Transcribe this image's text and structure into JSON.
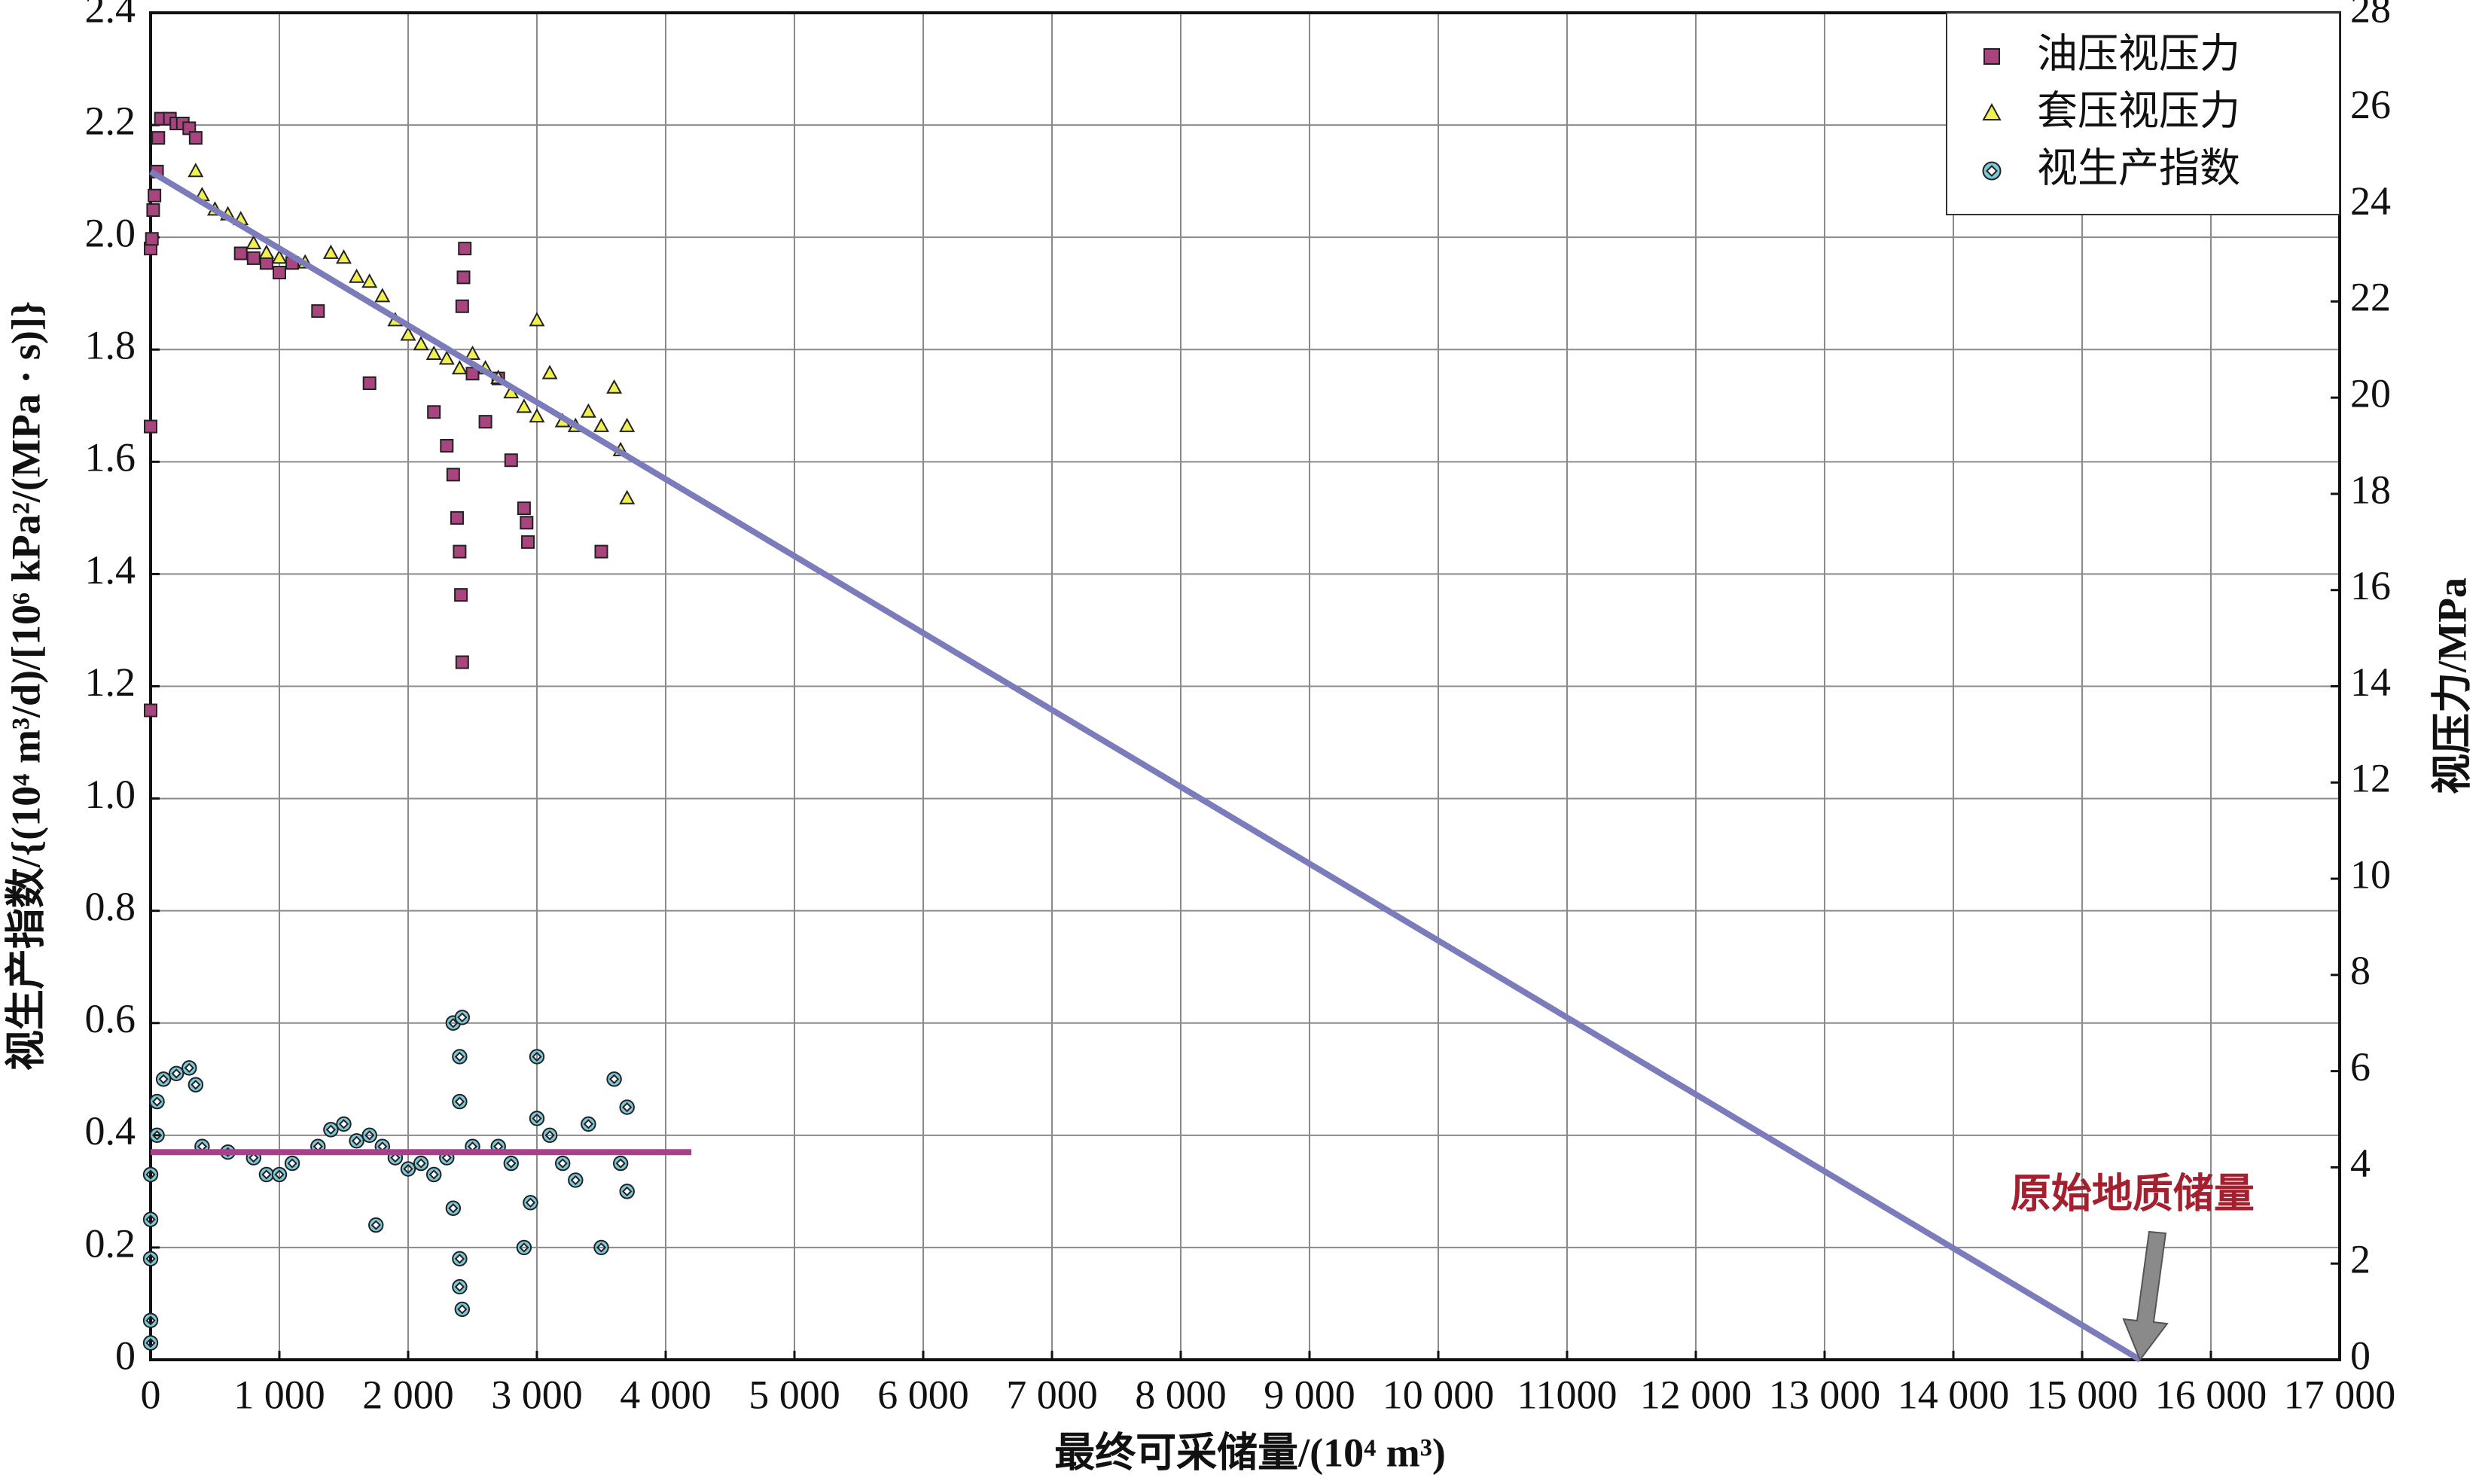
{
  "chart_data": {
    "type": "scatter",
    "xlabel": "最终可采储量/(10⁴ m³)",
    "ylabel": "视生产指数/{(10⁴ m³/d)/[10⁶ kPa²/(MPa · s)]}",
    "y2label": "视压力/MPa",
    "xlim": [
      0,
      17000
    ],
    "xticks": [
      0,
      {
        "value": 1000,
        "label": "1 000"
      },
      {
        "value": 2000,
        "label": "2 000"
      },
      {
        "value": 3000,
        "label": "3 000"
      },
      {
        "value": 4000,
        "label": "4 000"
      },
      {
        "value": 5000,
        "label": "5 000"
      },
      {
        "value": 6000,
        "label": "6 000"
      },
      {
        "value": 7000,
        "label": "7 000"
      },
      {
        "value": 8000,
        "label": "8 000"
      },
      {
        "value": 9000,
        "label": "9 000"
      },
      {
        "value": 10000,
        "label": "10 000"
      },
      11000,
      {
        "value": 12000,
        "label": "12 000"
      },
      {
        "value": 13000,
        "label": "13 000"
      },
      {
        "value": 14000,
        "label": "14 000"
      },
      {
        "value": 15000,
        "label": "15 000"
      },
      {
        "value": 16000,
        "label": "16 000"
      },
      {
        "value": 17000,
        "label": "17 000"
      }
    ],
    "ylim": [
      0,
      2.4
    ],
    "yticks": [
      0,
      0.2,
      0.4,
      0.6,
      0.8,
      {
        "value": 1,
        "label": "1.0"
      },
      1.2,
      1.4,
      1.6,
      1.8,
      {
        "value": 2,
        "label": "2.0"
      },
      2.2,
      2.4
    ],
    "y2lim": [
      0,
      28
    ],
    "y2ticks": [
      0,
      2,
      4,
      6,
      8,
      10,
      12,
      14,
      16,
      18,
      20,
      22,
      24,
      26,
      28
    ],
    "grid": true,
    "legend": "upper right",
    "series": [
      {
        "name": "油压视压力",
        "marker": "square",
        "color": "#a8457f",
        "axis": "y2",
        "x": [
          0,
          0,
          0,
          10,
          20,
          30,
          50,
          60,
          80,
          150,
          200,
          250,
          300,
          350,
          700,
          800,
          900,
          1000,
          1100,
          1300,
          1700,
          2200,
          2300,
          2350,
          2380,
          2400,
          2410,
          2420,
          2440,
          2430,
          2420,
          2600,
          2800,
          2900,
          2920,
          2930,
          3500,
          2500,
          2700
        ],
        "values": [
          13.5,
          19.4,
          23.1,
          23.3,
          23.9,
          24.2,
          24.7,
          25.4,
          25.8,
          25.8,
          25.7,
          25.7,
          25.6,
          25.4,
          23.0,
          22.9,
          22.8,
          22.6,
          22.8,
          21.8,
          20.3,
          19.7,
          19.0,
          18.4,
          17.5,
          16.8,
          15.9,
          14.5,
          23.1,
          22.5,
          21.9,
          19.5,
          18.7,
          17.7,
          17.4,
          17.0,
          16.8,
          20.5,
          20.4
        ]
      },
      {
        "name": "套压视压力",
        "marker": "triangle",
        "color": "#f2f04e",
        "axis": "y2",
        "x": [
          350,
          400,
          500,
          600,
          700,
          800,
          900,
          1000,
          1200,
          1400,
          1500,
          1600,
          1700,
          1800,
          1900,
          2000,
          2100,
          2200,
          2300,
          2400,
          2500,
          2600,
          2700,
          2800,
          2900,
          3000,
          3000,
          3100,
          3200,
          3300,
          3400,
          3500,
          3600,
          3650,
          3700,
          3700
        ],
        "values": [
          24.7,
          24.2,
          23.9,
          23.8,
          23.7,
          23.2,
          23.0,
          22.9,
          22.8,
          23.0,
          22.9,
          22.5,
          22.4,
          22.1,
          21.6,
          21.3,
          21.1,
          20.9,
          20.8,
          20.6,
          20.9,
          20.6,
          20.4,
          20.1,
          19.8,
          21.6,
          19.6,
          20.5,
          19.5,
          19.4,
          19.7,
          19.4,
          20.2,
          18.9,
          17.9,
          19.4
        ]
      },
      {
        "name": "视生产指数",
        "marker": "diamond",
        "color": "#7ec9d9",
        "axis": "y",
        "x": [
          0,
          0,
          0,
          0,
          0,
          50,
          50,
          100,
          200,
          300,
          350,
          400,
          600,
          800,
          900,
          1000,
          1100,
          1300,
          1400,
          1500,
          1600,
          1700,
          1750,
          1800,
          1900,
          2000,
          2100,
          2200,
          2300,
          2350,
          2350,
          2400,
          2400,
          2400,
          2400,
          2420,
          2420,
          2500,
          2700,
          2800,
          2900,
          2950,
          3000,
          3000,
          3100,
          3200,
          3300,
          3400,
          3500,
          3600,
          3650,
          3700,
          3700
        ],
        "values": [
          0.03,
          0.07,
          0.18,
          0.25,
          0.33,
          0.4,
          0.46,
          0.5,
          0.51,
          0.52,
          0.49,
          0.38,
          0.37,
          0.36,
          0.33,
          0.33,
          0.35,
          0.38,
          0.41,
          0.42,
          0.39,
          0.4,
          0.24,
          0.38,
          0.36,
          0.34,
          0.35,
          0.33,
          0.36,
          0.27,
          0.6,
          0.46,
          0.54,
          0.18,
          0.13,
          0.09,
          0.61,
          0.38,
          0.38,
          0.35,
          0.2,
          0.28,
          0.54,
          0.43,
          0.4,
          0.35,
          0.32,
          0.42,
          0.2,
          0.5,
          0.35,
          0.45,
          0.3
        ]
      },
      {
        "marker": "line",
        "color": "#7c7cbc",
        "axis": "y2",
        "x": [
          0,
          15450
        ],
        "values": [
          24.7,
          0
        ]
      },
      {
        "marker": "line",
        "color": "#a8408c",
        "axis": "y",
        "x": [
          0,
          4200
        ],
        "values": [
          0.37,
          0.37
        ]
      }
    ],
    "annotation": {
      "text": "原始地质储量",
      "color": "#a5202e",
      "x": 15450,
      "y2": 0
    }
  }
}
